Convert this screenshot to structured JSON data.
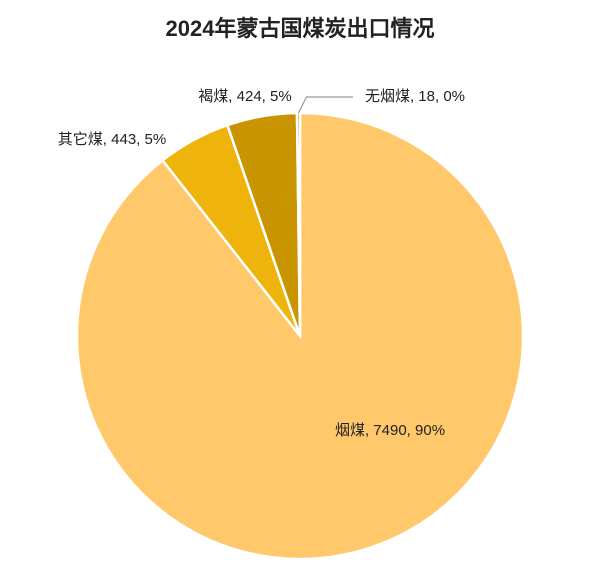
{
  "chart_data": {
    "type": "pie",
    "title": "2024年蒙古国煤炭出口情况",
    "categories": [
      "烟煤",
      "其它煤",
      "褐煤",
      "无烟煤"
    ],
    "values": [
      7490,
      443,
      424,
      18
    ],
    "value_labels": [
      "烟煤, 7490, 90%",
      "其它煤, 443, 5%",
      "褐煤, 424, 5%",
      "无烟煤, 18, 0%"
    ],
    "colors": [
      "#ffc96b",
      "#efb40b",
      "#c89500",
      "#a07700"
    ]
  }
}
